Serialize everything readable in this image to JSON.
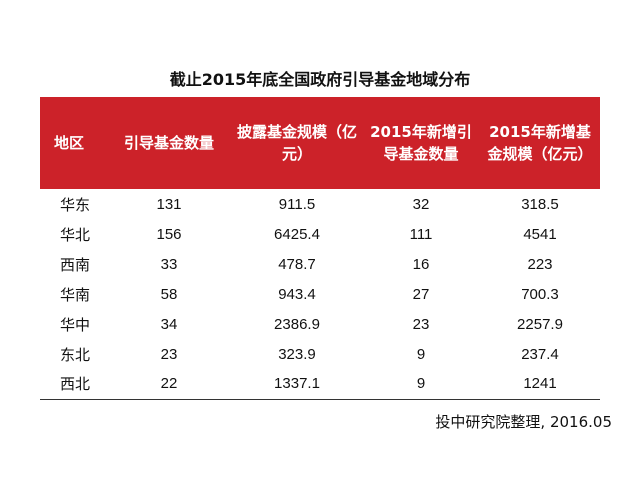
{
  "title": "截止2015年底全国政府引导基金地域分布",
  "table": {
    "headers": [
      "地区",
      "引导基金数量",
      "披露基金规模（亿元）",
      "2015年新增引导基金数量",
      "2015年新增基金规模（亿元）"
    ],
    "rows": [
      [
        "华东",
        "131",
        "911.5",
        "32",
        "318.5"
      ],
      [
        "华北",
        "156",
        "6425.4",
        "111",
        "4541"
      ],
      [
        "西南",
        "33",
        "478.7",
        "16",
        "223"
      ],
      [
        "华南",
        "58",
        "943.4",
        "27",
        "700.3"
      ],
      [
        "华中",
        "34",
        "2386.9",
        "23",
        "2257.9"
      ],
      [
        "东北",
        "23",
        "323.9",
        "9",
        "237.4"
      ],
      [
        "西北",
        "22",
        "1337.1",
        "9",
        "1241"
      ]
    ]
  },
  "source": "投中研究院整理, 2016.05",
  "colors": {
    "header_bg": "#cc2229",
    "header_text": "#ffffff"
  }
}
